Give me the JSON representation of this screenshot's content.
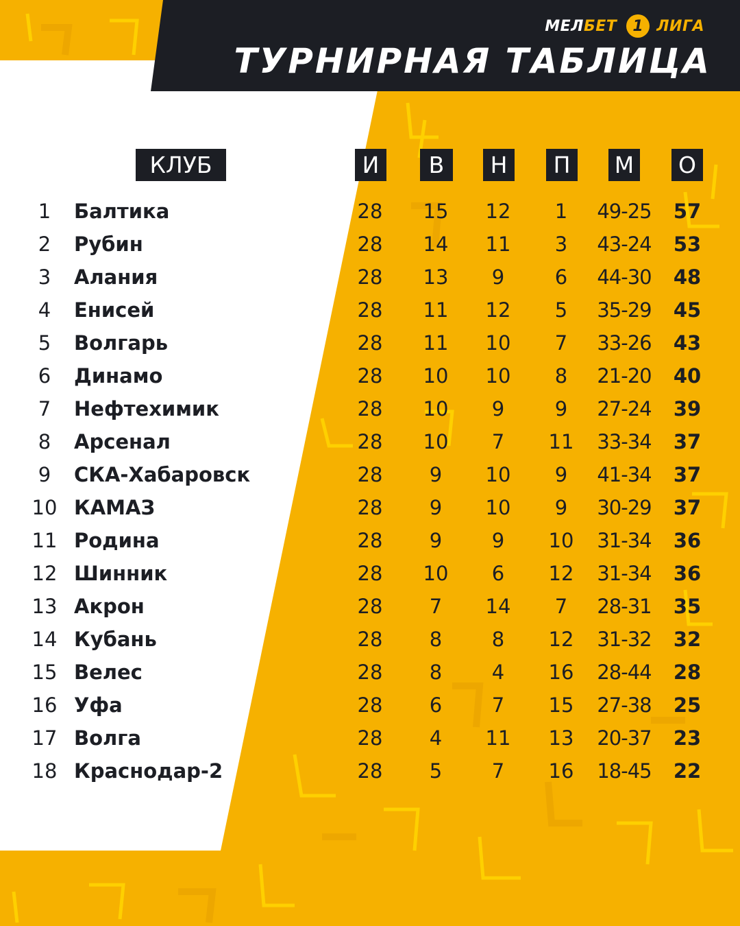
{
  "brand": {
    "part1": "МЕЛ",
    "part2": "БЕТ",
    "badge": "1",
    "part3": "ЛИГА"
  },
  "title": "ТУРНИРНАЯ ТАБЛИЦА",
  "colors": {
    "background": "#f6b100",
    "panel": "#ffffff",
    "dark": "#1c1e24",
    "accent_line": "#ffd400"
  },
  "columns": {
    "club": "КЛУБ",
    "played": "И",
    "won": "В",
    "drawn": "Н",
    "lost": "П",
    "goals": "М",
    "points": "О"
  },
  "rows": [
    {
      "rank": "1",
      "club": "Балтика",
      "played": "28",
      "won": "15",
      "drawn": "12",
      "lost": "1",
      "goals": "49-25",
      "points": "57"
    },
    {
      "rank": "2",
      "club": "Рубин",
      "played": "28",
      "won": "14",
      "drawn": "11",
      "lost": "3",
      "goals": "43-24",
      "points": "53"
    },
    {
      "rank": "3",
      "club": "Алания",
      "played": "28",
      "won": "13",
      "drawn": "9",
      "lost": "6",
      "goals": "44-30",
      "points": "48"
    },
    {
      "rank": "4",
      "club": "Енисей",
      "played": "28",
      "won": "11",
      "drawn": "12",
      "lost": "5",
      "goals": "35-29",
      "points": "45"
    },
    {
      "rank": "5",
      "club": "Волгарь",
      "played": "28",
      "won": "11",
      "drawn": "10",
      "lost": "7",
      "goals": "33-26",
      "points": "43"
    },
    {
      "rank": "6",
      "club": "Динамо",
      "played": "28",
      "won": "10",
      "drawn": "10",
      "lost": "8",
      "goals": "21-20",
      "points": "40"
    },
    {
      "rank": "7",
      "club": "Нефтехимик",
      "played": "28",
      "won": "10",
      "drawn": "9",
      "lost": "9",
      "goals": "27-24",
      "points": "39"
    },
    {
      "rank": "8",
      "club": "Арсенал",
      "played": "28",
      "won": "10",
      "drawn": "7",
      "lost": "11",
      "goals": "33-34",
      "points": "37"
    },
    {
      "rank": "9",
      "club": "СКА-Хабаровск",
      "played": "28",
      "won": "9",
      "drawn": "10",
      "lost": "9",
      "goals": "41-34",
      "points": "37"
    },
    {
      "rank": "10",
      "club": "КАМАЗ",
      "played": "28",
      "won": "9",
      "drawn": "10",
      "lost": "9",
      "goals": "30-29",
      "points": "37"
    },
    {
      "rank": "11",
      "club": "Родина",
      "played": "28",
      "won": "9",
      "drawn": "9",
      "lost": "10",
      "goals": "31-34",
      "points": "36"
    },
    {
      "rank": "12",
      "club": "Шинник",
      "played": "28",
      "won": "10",
      "drawn": "6",
      "lost": "12",
      "goals": "31-34",
      "points": "36"
    },
    {
      "rank": "13",
      "club": "Акрон",
      "played": "28",
      "won": "7",
      "drawn": "14",
      "lost": "7",
      "goals": "28-31",
      "points": "35"
    },
    {
      "rank": "14",
      "club": "Кубань",
      "played": "28",
      "won": "8",
      "drawn": "8",
      "lost": "12",
      "goals": "31-32",
      "points": "32"
    },
    {
      "rank": "15",
      "club": "Велес",
      "played": "28",
      "won": "8",
      "drawn": "4",
      "lost": "16",
      "goals": "28-44",
      "points": "28"
    },
    {
      "rank": "16",
      "club": "Уфа",
      "played": "28",
      "won": "6",
      "drawn": "7",
      "lost": "15",
      "goals": "27-38",
      "points": "25"
    },
    {
      "rank": "17",
      "club": "Волга",
      "played": "28",
      "won": "4",
      "drawn": "11",
      "lost": "13",
      "goals": "20-37",
      "points": "23"
    },
    {
      "rank": "18",
      "club": "Краснодар-2",
      "played": "28",
      "won": "5",
      "drawn": "7",
      "lost": "16",
      "goals": "18-45",
      "points": "22"
    }
  ]
}
